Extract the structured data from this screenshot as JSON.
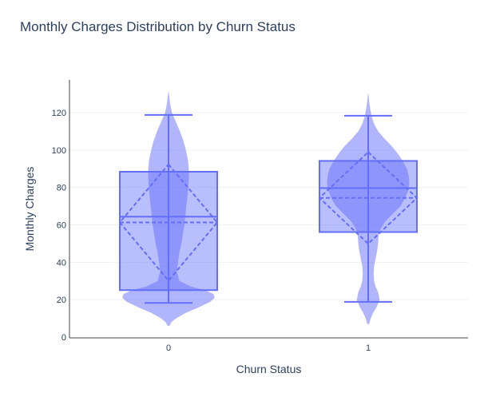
{
  "chart_data": {
    "type": "violin",
    "title": "Monthly Charges Distribution by Churn Status",
    "xlabel": "Churn Status",
    "ylabel": "Monthly Charges",
    "categories": [
      "0",
      "1"
    ],
    "ylim": [
      0,
      130
    ],
    "yticks": [
      0,
      20,
      40,
      60,
      80,
      100,
      120
    ],
    "grid": "horizontal",
    "color": "#636efa",
    "series": [
      {
        "category": "0",
        "box": {
          "whisker_low": 18.25,
          "q1": 25.1,
          "median": 64.4,
          "q3": 88.4,
          "whisker_high": 118.75
        },
        "mean": 61.3,
        "mean_minus_sd": 30.2,
        "mean_plus_sd": 92.3,
        "kde": [
          [
            6,
            0.02
          ],
          [
            8,
            0.06
          ],
          [
            10,
            0.15
          ],
          [
            13,
            0.35
          ],
          [
            16,
            0.62
          ],
          [
            19,
            0.85
          ],
          [
            21,
            0.93
          ],
          [
            23,
            0.91
          ],
          [
            25,
            0.75
          ],
          [
            27,
            0.45
          ],
          [
            30,
            0.22
          ],
          [
            35,
            0.17
          ],
          [
            40,
            0.19
          ],
          [
            45,
            0.22
          ],
          [
            50,
            0.26
          ],
          [
            55,
            0.29
          ],
          [
            60,
            0.32
          ],
          [
            65,
            0.34
          ],
          [
            70,
            0.36
          ],
          [
            75,
            0.38
          ],
          [
            80,
            0.4
          ],
          [
            85,
            0.41
          ],
          [
            90,
            0.41
          ],
          [
            95,
            0.39
          ],
          [
            100,
            0.35
          ],
          [
            105,
            0.3
          ],
          [
            110,
            0.23
          ],
          [
            115,
            0.15
          ],
          [
            120,
            0.07
          ],
          [
            125,
            0.03
          ],
          [
            131,
            0.005
          ]
        ]
      },
      {
        "category": "1",
        "box": {
          "whisker_low": 18.85,
          "q1": 56.15,
          "median": 79.65,
          "q3": 94.2,
          "whisker_high": 118.35
        },
        "mean": 74.4,
        "mean_minus_sd": 49.9,
        "mean_plus_sd": 98.9,
        "kde": [
          [
            7,
            0.02
          ],
          [
            10,
            0.05
          ],
          [
            13,
            0.1
          ],
          [
            16,
            0.17
          ],
          [
            20,
            0.23
          ],
          [
            24,
            0.2
          ],
          [
            27,
            0.15
          ],
          [
            30,
            0.12
          ],
          [
            34,
            0.11
          ],
          [
            38,
            0.12
          ],
          [
            42,
            0.15
          ],
          [
            46,
            0.18
          ],
          [
            50,
            0.2
          ],
          [
            54,
            0.21
          ],
          [
            58,
            0.25
          ],
          [
            62,
            0.35
          ],
          [
            66,
            0.5
          ],
          [
            70,
            0.65
          ],
          [
            74,
            0.74
          ],
          [
            78,
            0.8
          ],
          [
            82,
            0.83
          ],
          [
            86,
            0.82
          ],
          [
            90,
            0.78
          ],
          [
            94,
            0.7
          ],
          [
            98,
            0.6
          ],
          [
            102,
            0.48
          ],
          [
            106,
            0.33
          ],
          [
            110,
            0.2
          ],
          [
            114,
            0.12
          ],
          [
            118,
            0.07
          ],
          [
            122,
            0.04
          ],
          [
            126,
            0.02
          ],
          [
            130,
            0.005
          ]
        ]
      }
    ]
  }
}
